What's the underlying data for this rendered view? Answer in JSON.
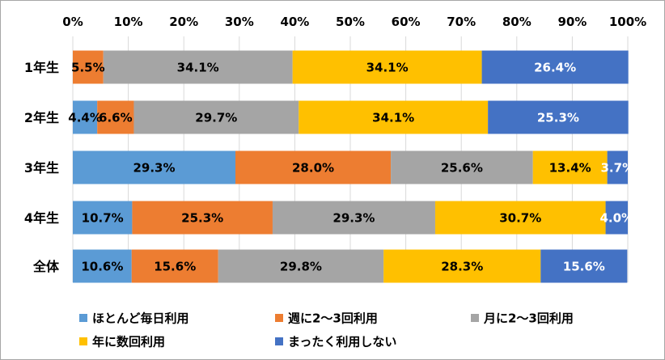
{
  "chart_data": {
    "type": "bar",
    "orientation": "horizontal",
    "stacked": "percent",
    "categories": [
      "1年生",
      "2年生",
      "3年生",
      "4年生",
      "全体"
    ],
    "series": [
      {
        "name": "ほとんど毎日利用",
        "color": "#5b9bd5",
        "label_color": "#000000",
        "values": [
          0.0,
          4.4,
          29.3,
          10.7,
          10.6
        ],
        "labels": [
          "",
          "4.4%",
          "29.3%",
          "10.7%",
          "10.6%"
        ]
      },
      {
        "name": "週に2～3回利用",
        "color": "#ed7d31",
        "label_color": "#000000",
        "values": [
          5.5,
          6.6,
          28.0,
          25.3,
          15.6
        ],
        "labels": [
          "5.5%",
          "6.6%",
          "28.0%",
          "25.3%",
          "15.6%"
        ]
      },
      {
        "name": "月に2～3回利用",
        "color": "#a5a5a5",
        "label_color": "#000000",
        "values": [
          34.1,
          29.7,
          25.6,
          29.3,
          29.8
        ],
        "labels": [
          "34.1%",
          "29.7%",
          "25.6%",
          "29.3%",
          "29.8%"
        ]
      },
      {
        "name": "年に数回利用",
        "color": "#ffc000",
        "label_color": "#000000",
        "values": [
          34.1,
          34.1,
          13.4,
          30.7,
          28.3
        ],
        "labels": [
          "34.1%",
          "34.1%",
          "13.4%",
          "30.7%",
          "28.3%"
        ]
      },
      {
        "name": "まったく利用しない",
        "color": "#4472c4",
        "label_color": "#ffffff",
        "values": [
          26.4,
          25.3,
          3.7,
          4.0,
          15.6
        ],
        "labels": [
          "26.4%",
          "25.3%",
          "3.7%",
          "4.0%",
          "15.6%"
        ]
      }
    ],
    "x_ticks": [
      "0%",
      "10%",
      "20%",
      "30%",
      "40%",
      "50%",
      "60%",
      "70%",
      "80%",
      "90%",
      "100%"
    ],
    "xlim": [
      0,
      100
    ],
    "grid": true,
    "legend_position": "bottom"
  }
}
